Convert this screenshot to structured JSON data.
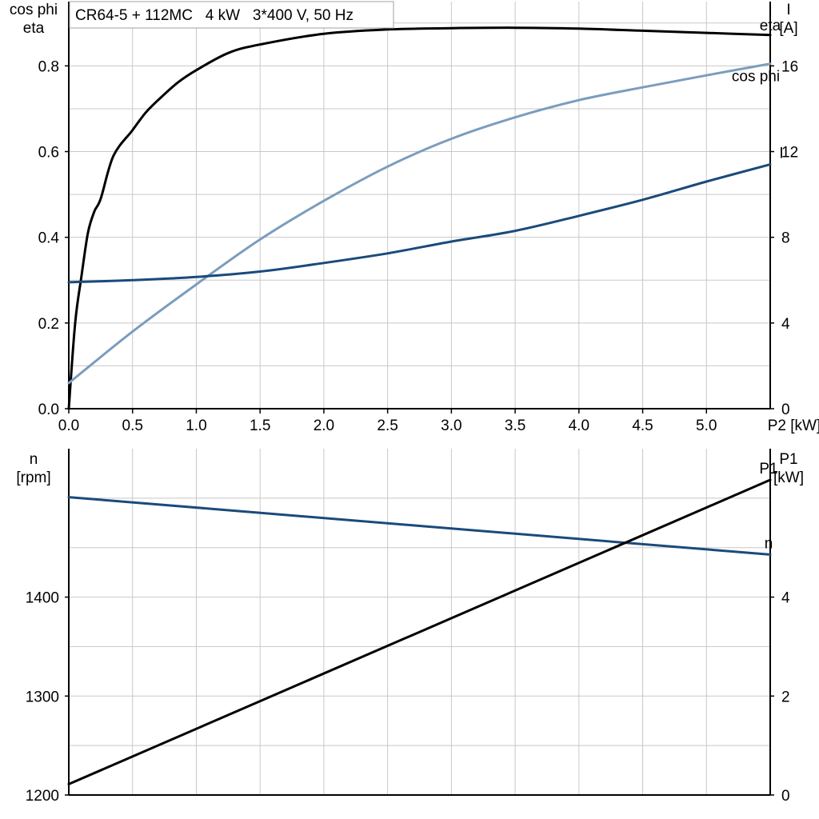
{
  "chart_data": [
    {
      "type": "line",
      "title": "CR64-5 + 112MC   4 kW   3*400 V, 50 Hz",
      "xlabel": "P2 [kW]",
      "x_ticks": [
        0.0,
        0.5,
        1.0,
        1.5,
        2.0,
        2.5,
        3.0,
        3.5,
        4.0,
        4.5,
        5.0
      ],
      "xlim": [
        0,
        5.5
      ],
      "ylabel_left": [
        "cos phi",
        "eta"
      ],
      "ylim_left": [
        0,
        0.95
      ],
      "yticks_left": [
        0.0,
        0.2,
        0.4,
        0.6,
        0.8
      ],
      "ylabel_right": [
        "I",
        "[A]"
      ],
      "ylim_right": [
        0,
        19
      ],
      "yticks_right": [
        0,
        4,
        8,
        12,
        16
      ],
      "grid": true,
      "colors": {
        "eta": "#000000",
        "cos_phi": "#7b9dbd",
        "I": "#1a4a7a"
      },
      "series": [
        {
          "name": "eta",
          "axis": "left",
          "x": [
            0,
            0.05,
            0.1,
            0.15,
            0.2,
            0.25,
            0.35,
            0.5,
            0.6,
            0.7,
            0.85,
            1.0,
            1.25,
            1.5,
            2.0,
            2.5,
            3.0,
            3.5,
            4.0,
            4.5,
            5.0,
            5.5
          ],
          "values": [
            0.0,
            0.2,
            0.31,
            0.41,
            0.46,
            0.49,
            0.59,
            0.65,
            0.69,
            0.72,
            0.76,
            0.79,
            0.83,
            0.85,
            0.875,
            0.885,
            0.888,
            0.889,
            0.887,
            0.882,
            0.877,
            0.872
          ]
        },
        {
          "name": "cos phi",
          "axis": "left",
          "x": [
            0,
            0.5,
            1.0,
            1.5,
            2.0,
            2.5,
            3.0,
            3.5,
            4.0,
            4.5,
            5.0,
            5.5
          ],
          "values": [
            0.06,
            0.18,
            0.29,
            0.395,
            0.485,
            0.565,
            0.63,
            0.68,
            0.72,
            0.75,
            0.778,
            0.805
          ]
        },
        {
          "name": "I",
          "axis": "right",
          "x": [
            0,
            0.5,
            1.0,
            1.5,
            2.0,
            2.5,
            3.0,
            3.5,
            4.0,
            4.5,
            5.0,
            5.5
          ],
          "values": [
            5.9,
            6.0,
            6.15,
            6.4,
            6.8,
            7.25,
            7.8,
            8.3,
            9.0,
            9.75,
            10.6,
            11.4
          ]
        }
      ]
    },
    {
      "type": "line",
      "ylabel_left": [
        "n",
        "[rpm]"
      ],
      "ylim_left": [
        1200,
        1550
      ],
      "yticks_left": [
        1200,
        1300,
        1400
      ],
      "ylabel_right": [
        "P1",
        "[kW]"
      ],
      "ylim_right": [
        0,
        7
      ],
      "yticks_right": [
        0,
        2,
        4
      ],
      "xlim": [
        0,
        5.5
      ],
      "grid": true,
      "colors": {
        "n": "#1a4a7a",
        "P1": "#000000"
      },
      "series": [
        {
          "name": "n",
          "axis": "left",
          "x": [
            0,
            5.5
          ],
          "values": [
            1501,
            1443
          ]
        },
        {
          "name": "P1",
          "axis": "right",
          "x": [
            0,
            5.5
          ],
          "values": [
            0.22,
            6.37
          ]
        }
      ]
    }
  ]
}
